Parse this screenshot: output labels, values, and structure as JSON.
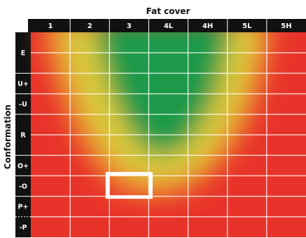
{
  "chart_data": {
    "type": "heatmap",
    "x_title": "Fat cover",
    "y_title": "Conformation",
    "columns": [
      "1",
      "2",
      "3",
      "4L",
      "4H",
      "5L",
      "5H"
    ],
    "rows": [
      "E",
      "U+",
      "-U",
      "R",
      "O+",
      "-O",
      "P+",
      "-P"
    ],
    "row_weights": [
      2,
      1,
      1,
      2,
      1,
      1,
      1,
      1
    ],
    "color_scale": {
      "high": "#1f9a4a",
      "mid": "#d8c83a",
      "low": "#e8332a"
    },
    "highlight": {
      "column": "3",
      "row": "-O"
    },
    "grid": true
  }
}
